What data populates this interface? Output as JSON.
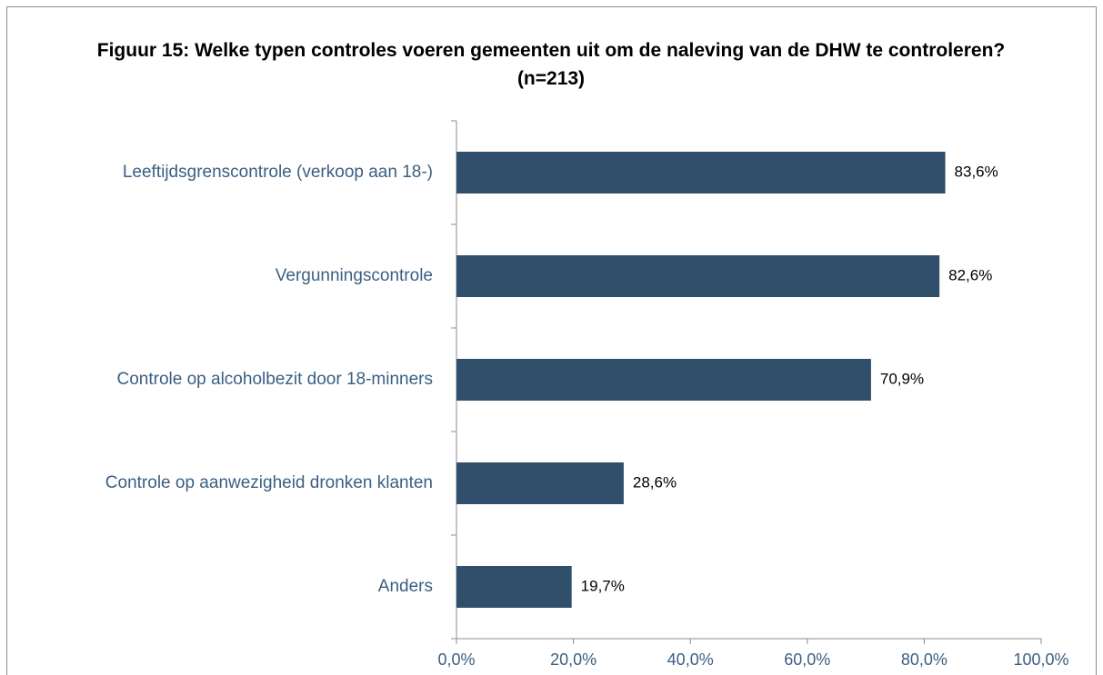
{
  "chart_data": {
    "type": "bar",
    "orientation": "horizontal",
    "title": "Figuur 15: Welke typen controles voeren gemeenten uit om de naleving van de DHW te controleren? (n=213)",
    "categories": [
      "Leeftijdsgrenscontrole (verkoop aan 18-)",
      "Vergunningscontrole",
      "Controle op alcoholbezit door 18-minners",
      "Controle op aanwezigheid dronken klanten",
      "Anders"
    ],
    "values": [
      83.6,
      82.6,
      70.9,
      28.6,
      19.7
    ],
    "value_labels": [
      "83,6%",
      "82,6%",
      "70,9%",
      "28,6%",
      "19,7%"
    ],
    "color": "#2f4f6b",
    "xlim": [
      0,
      100
    ],
    "xticks": [
      {
        "value": 0,
        "label": "0,0%"
      },
      {
        "value": 20,
        "label": "20,0%"
      },
      {
        "value": 40,
        "label": "40,0%"
      },
      {
        "value": 60,
        "label": "60,0%"
      },
      {
        "value": 80,
        "label": "80,0%"
      },
      {
        "value": 100,
        "label": "100,0%"
      }
    ],
    "grid": false
  }
}
